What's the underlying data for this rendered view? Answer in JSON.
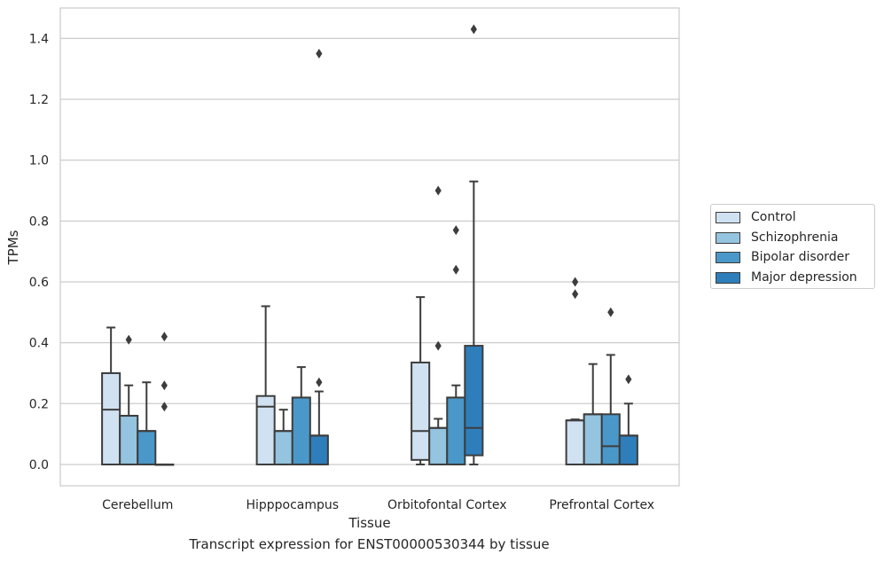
{
  "chart_data": {
    "type": "box",
    "title": "",
    "xlabel": "Tissue",
    "ylabel": "TPMs",
    "ylim": [
      -0.07,
      1.5
    ],
    "yticks": [
      "0.0",
      "0.2",
      "0.4",
      "0.6",
      "0.8",
      "1.0",
      "1.2",
      "1.4"
    ],
    "categories": [
      "Cerebellum",
      "Hipppocampus",
      "Orbitofontal Cortex",
      "Prefrontal Cortex"
    ],
    "grid": "horizontal",
    "legend_position": "right",
    "series": [
      {
        "name": "Control",
        "color": "#d0e1f2",
        "boxes": [
          {
            "q1": 0.0,
            "median": 0.18,
            "q3": 0.3,
            "whisker_low": 0.0,
            "whisker_high": 0.45,
            "outliers": []
          },
          {
            "q1": 0.0,
            "median": 0.19,
            "q3": 0.225,
            "whisker_low": 0.0,
            "whisker_high": 0.52,
            "outliers": []
          },
          {
            "q1": 0.015,
            "median": 0.11,
            "q3": 0.335,
            "whisker_low": 0.0,
            "whisker_high": 0.55,
            "outliers": []
          },
          {
            "q1": 0.0,
            "median": 0.145,
            "q3": 0.145,
            "whisker_low": 0.0,
            "whisker_high": 0.148,
            "outliers": [
              0.6,
              0.56
            ]
          }
        ]
      },
      {
        "name": "Schizophrenia",
        "color": "#94c4df",
        "boxes": [
          {
            "q1": 0.0,
            "median": 0.16,
            "q3": 0.16,
            "whisker_low": 0.0,
            "whisker_high": 0.26,
            "outliers": [
              0.41
            ]
          },
          {
            "q1": 0.0,
            "median": 0.11,
            "q3": 0.11,
            "whisker_low": 0.0,
            "whisker_high": 0.18,
            "outliers": []
          },
          {
            "q1": 0.0,
            "median": 0.12,
            "q3": 0.12,
            "whisker_low": 0.0,
            "whisker_high": 0.15,
            "outliers": [
              0.9,
              0.39
            ]
          },
          {
            "q1": 0.0,
            "median": 0.165,
            "q3": 0.165,
            "whisker_low": 0.0,
            "whisker_high": 0.33,
            "outliers": []
          }
        ]
      },
      {
        "name": "Bipolar disorder",
        "color": "#4a98c9",
        "boxes": [
          {
            "q1": 0.0,
            "median": 0.11,
            "q3": 0.11,
            "whisker_low": 0.0,
            "whisker_high": 0.27,
            "outliers": []
          },
          {
            "q1": 0.0,
            "median": 0.22,
            "q3": 0.22,
            "whisker_low": 0.0,
            "whisker_high": 0.32,
            "outliers": []
          },
          {
            "q1": 0.0,
            "median": 0.22,
            "q3": 0.22,
            "whisker_low": 0.0,
            "whisker_high": 0.26,
            "outliers": [
              0.77,
              0.64
            ]
          },
          {
            "q1": 0.0,
            "median": 0.06,
            "q3": 0.165,
            "whisker_low": 0.0,
            "whisker_high": 0.36,
            "outliers": [
              0.5
            ]
          }
        ]
      },
      {
        "name": "Major depression",
        "color": "#2e7ebc",
        "boxes": [
          {
            "q1": 0.0,
            "median": 0.0,
            "q3": 0.0,
            "whisker_low": 0.0,
            "whisker_high": 0.0,
            "outliers": [
              0.42,
              0.26,
              0.19
            ]
          },
          {
            "q1": 0.0,
            "median": 0.095,
            "q3": 0.095,
            "whisker_low": 0.0,
            "whisker_high": 0.24,
            "outliers": [
              1.35,
              0.27
            ]
          },
          {
            "q1": 0.03,
            "median": 0.12,
            "q3": 0.39,
            "whisker_low": 0.0,
            "whisker_high": 0.93,
            "outliers": [
              1.43
            ]
          },
          {
            "q1": 0.0,
            "median": 0.095,
            "q3": 0.095,
            "whisker_low": 0.0,
            "whisker_high": 0.2,
            "outliers": [
              0.28
            ]
          }
        ]
      }
    ]
  },
  "caption": "Transcript expression for ENST00000530344 by tissue"
}
